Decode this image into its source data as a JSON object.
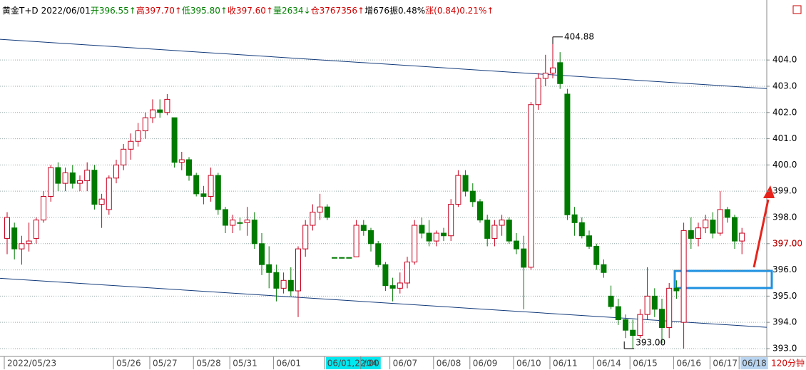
{
  "chart_data": {
    "type": "candlestick",
    "header": [
      {
        "text": "黄金T+D",
        "color": "#000000"
      },
      {
        "text": "2022/06/01",
        "color": "#000000"
      },
      {
        "text": "开396.55↑",
        "color": "#008000"
      },
      {
        "text": "高397.70↑",
        "color": "#d00000"
      },
      {
        "text": "低395.80↑",
        "color": "#008000"
      },
      {
        "text": "收397.60↑",
        "color": "#d00000"
      },
      {
        "text": "量2634↓",
        "color": "#008000"
      },
      {
        "text": "仓3767356↑",
        "color": "#d00000"
      },
      {
        "text": "增676",
        "color": "#000000"
      },
      {
        "text": "振0.48%",
        "color": "#000000"
      },
      {
        "text": "涨(0.84)0.21%↑",
        "color": "#d00000"
      }
    ],
    "period": "120分钟",
    "up_color": "#c8001e",
    "down_color": "#007a00",
    "ylim": [
      392.7,
      406.07
    ],
    "yticks": [
      {
        "value": 393,
        "label": "393.0"
      },
      {
        "value": 394,
        "label": "394.0"
      },
      {
        "value": 395,
        "label": "395.0"
      },
      {
        "value": 396,
        "label": "396.0"
      },
      {
        "value": 397,
        "label": "397.0"
      },
      {
        "value": 398,
        "label": "398.0"
      },
      {
        "value": 399,
        "label": "399.0"
      },
      {
        "value": 400,
        "label": "400.0"
      },
      {
        "value": 401,
        "label": "401.0"
      },
      {
        "value": 402,
        "label": "402.0"
      },
      {
        "value": 403,
        "label": "403.0"
      },
      {
        "value": 404,
        "label": "404.0"
      }
    ],
    "grid": true,
    "last_price": {
      "value": 397,
      "label": "397.00"
    },
    "high_label": {
      "value": 404.88,
      "label": "404.88"
    },
    "low_label": {
      "value": 393,
      "label": "393.00"
    },
    "trendlines": [
      [
        404.79,
        402.91
      ],
      [
        395.68,
        393.81
      ]
    ],
    "categories": [
      "2022/05/23",
      null,
      null,
      null,
      null,
      null,
      null,
      null,
      null,
      null,
      null,
      null,
      null,
      null,
      null,
      "05/26",
      null,
      null,
      null,
      null,
      "05/27",
      null,
      null,
      null,
      null,
      null,
      "05/28",
      null,
      null,
      null,
      null,
      "05/31",
      null,
      null,
      null,
      null,
      null,
      "06/01",
      null,
      null,
      null,
      null,
      null,
      null,
      {
        "label": "06/01,22:00",
        "highlight": "#00e8f0"
      },
      null,
      null,
      null,
      null,
      "/04",
      null,
      null,
      null,
      "06/07",
      null,
      null,
      null,
      null,
      null,
      "06/08",
      null,
      null,
      null,
      null,
      "06/09",
      null,
      null,
      null,
      null,
      null,
      "06/10",
      null,
      null,
      null,
      null,
      "06/11",
      null,
      null,
      null,
      null,
      null,
      "06/14",
      null,
      null,
      null,
      null,
      "06/15",
      null,
      null,
      null,
      null,
      null,
      "06/16",
      null,
      null,
      null,
      null,
      "06/17",
      null,
      null,
      null,
      {
        "label": "06/18",
        "highlight": "#b8d4f0"
      }
    ],
    "candles": [
      [
        397.2,
        398.2,
        396.6,
        398.0
      ],
      [
        397.6,
        397.8,
        396.4,
        396.8
      ],
      [
        396.8,
        397.3,
        396.2,
        397.0
      ],
      [
        397.0,
        397.8,
        396.7,
        397.1
      ],
      [
        397.2,
        398.0,
        397.0,
        397.9
      ],
      [
        397.9,
        399.0,
        397.8,
        398.8
      ],
      [
        398.8,
        400.0,
        398.6,
        399.9
      ],
      [
        399.9,
        400.1,
        399.0,
        399.3
      ],
      [
        399.3,
        399.9,
        399.0,
        399.7
      ],
      [
        399.7,
        400.0,
        399.1,
        399.3
      ],
      [
        399.3,
        399.6,
        399.0,
        399.4
      ],
      [
        399.4,
        400.1,
        399.0,
        399.8
      ],
      [
        399.8,
        400.0,
        398.3,
        398.5
      ],
      [
        398.5,
        398.9,
        397.6,
        398.7
      ],
      [
        398.3,
        399.6,
        398.1,
        399.5
      ],
      [
        399.5,
        400.2,
        399.3,
        400.0
      ],
      [
        400.0,
        400.8,
        399.8,
        400.6
      ],
      [
        400.6,
        401.2,
        400.2,
        400.9
      ],
      [
        400.9,
        401.6,
        400.7,
        401.3
      ],
      [
        401.3,
        402.0,
        401.0,
        401.8
      ],
      [
        401.8,
        402.5,
        401.6,
        402.1
      ],
      [
        402.1,
        402.5,
        401.8,
        402.0
      ],
      [
        402.0,
        402.7,
        401.9,
        402.5
      ],
      [
        401.8,
        401.8,
        399.9,
        400.1
      ],
      [
        400.1,
        400.5,
        399.8,
        400.2
      ],
      [
        400.2,
        400.3,
        399.4,
        399.6
      ],
      [
        399.6,
        399.7,
        398.8,
        398.9
      ],
      [
        398.9,
        399.2,
        398.5,
        398.8
      ],
      [
        398.8,
        399.9,
        398.6,
        399.6
      ],
      [
        399.6,
        399.7,
        398.1,
        398.3
      ],
      [
        398.3,
        398.4,
        397.4,
        397.7
      ],
      [
        397.7,
        398.1,
        397.4,
        397.9
      ],
      [
        397.8,
        398.0,
        397.5,
        397.8
      ],
      [
        397.8,
        398.4,
        397.3,
        397.9
      ],
      [
        397.9,
        398.2,
        396.8,
        397.0
      ],
      [
        397.0,
        397.4,
        395.8,
        396.2
      ],
      [
        396.2,
        396.9,
        395.3,
        395.9
      ],
      [
        395.9,
        396.2,
        394.8,
        395.3
      ],
      [
        395.3,
        395.9,
        395.1,
        395.6
      ],
      [
        395.6,
        396.1,
        395.0,
        395.2
      ],
      [
        395.2,
        396.9,
        394.2,
        396.8
      ],
      [
        396.8,
        397.9,
        396.5,
        397.7
      ],
      [
        397.7,
        398.5,
        397.5,
        398.2
      ],
      [
        398.2,
        398.9,
        397.9,
        398.4
      ],
      [
        398.4,
        398.5,
        397.9,
        398.0
      ],
      [
        396.47,
        396.47,
        396.47,
        396.47
      ],
      [
        396.47,
        396.47,
        396.47,
        396.47
      ],
      [
        396.47,
        396.47,
        396.47,
        396.47
      ],
      [
        396.5,
        397.9,
        396.5,
        397.7
      ],
      [
        397.7,
        397.9,
        397.3,
        397.5
      ],
      [
        397.5,
        397.6,
        396.7,
        397.0
      ],
      [
        397.0,
        397.1,
        396.1,
        396.2
      ],
      [
        396.2,
        396.3,
        395.2,
        395.4
      ],
      [
        395.4,
        395.7,
        394.8,
        395.3
      ],
      [
        395.3,
        395.9,
        395.1,
        395.5
      ],
      [
        395.5,
        396.5,
        395.3,
        396.3
      ],
      [
        396.3,
        397.9,
        396.2,
        397.7
      ],
      [
        397.7,
        398.0,
        397.2,
        397.4
      ],
      [
        397.4,
        397.9,
        396.9,
        397.1
      ],
      [
        397.1,
        397.5,
        396.9,
        397.4
      ],
      [
        397.4,
        397.6,
        397.1,
        397.3
      ],
      [
        397.3,
        398.7,
        397.1,
        398.5
      ],
      [
        398.5,
        399.8,
        398.4,
        399.6
      ],
      [
        399.6,
        399.8,
        398.8,
        399.0
      ],
      [
        399.0,
        399.3,
        398.4,
        398.6
      ],
      [
        398.6,
        398.7,
        397.8,
        397.9
      ],
      [
        397.9,
        398.1,
        396.9,
        397.2
      ],
      [
        397.2,
        397.9,
        396.9,
        397.7
      ],
      [
        397.7,
        398.1,
        397.3,
        397.9
      ],
      [
        397.9,
        398.0,
        397.0,
        397.1
      ],
      [
        397.1,
        397.4,
        396.6,
        396.8
      ],
      [
        396.8,
        397.3,
        394.5,
        396.1
      ],
      [
        396.1,
        402.4,
        396.0,
        402.3
      ],
      [
        402.3,
        403.5,
        402.1,
        403.3
      ],
      [
        403.3,
        404.2,
        403.0,
        403.5
      ],
      [
        403.5,
        404.88,
        403.3,
        403.7
      ],
      [
        403.9,
        404.3,
        402.9,
        403.1
      ],
      [
        402.7,
        402.9,
        397.9,
        398.1
      ],
      [
        398.1,
        398.4,
        397.3,
        397.8
      ],
      [
        397.8,
        398.0,
        397.2,
        397.3
      ],
      [
        397.3,
        397.5,
        396.8,
        396.9
      ],
      [
        396.9,
        397.0,
        396.0,
        396.2
      ],
      [
        396.2,
        396.4,
        395.7,
        395.9
      ],
      [
        395.0,
        395.4,
        394.5,
        394.6
      ],
      [
        394.6,
        394.9,
        393.9,
        394.1
      ],
      [
        394.1,
        394.3,
        393.4,
        393.7
      ],
      [
        393.7,
        394.1,
        393.0,
        393.5
      ],
      [
        393.5,
        394.5,
        393.4,
        394.3
      ],
      [
        394.3,
        396.1,
        394.1,
        395.0
      ],
      [
        395.0,
        395.3,
        394.2,
        394.5
      ],
      [
        394.5,
        394.9,
        393.2,
        393.8
      ],
      [
        393.8,
        395.5,
        393.4,
        395.3
      ],
      [
        395.3,
        395.6,
        394.9,
        395.2
      ],
      [
        394.0,
        397.8,
        393.0,
        397.5
      ],
      [
        397.5,
        398.0,
        396.8,
        397.2
      ],
      [
        397.2,
        397.8,
        396.9,
        397.6
      ],
      [
        397.6,
        398.1,
        397.4,
        397.9
      ],
      [
        397.9,
        398.2,
        397.2,
        397.4
      ],
      [
        397.4,
        399.0,
        397.3,
        398.3
      ],
      [
        398.3,
        398.4,
        397.8,
        398.0
      ],
      [
        398.0,
        398.1,
        396.8,
        397.1
      ],
      [
        397.1,
        397.6,
        396.6,
        397.4
      ]
    ]
  }
}
